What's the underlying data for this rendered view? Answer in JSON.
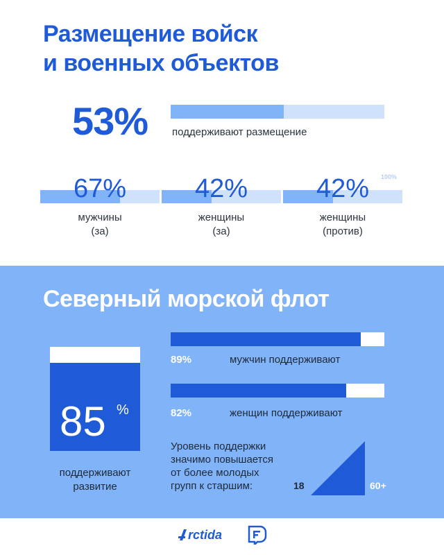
{
  "section1": {
    "title_line1": "Размещение войск",
    "title_line2": "и военных объектов",
    "main": {
      "value_text": "53%",
      "value": 53,
      "caption": "поддерживают размещение"
    },
    "scale_max_label": "100%",
    "groups": [
      {
        "value_text": "67%",
        "value": 67,
        "label_line1": "мужчины",
        "label_line2": "(за)"
      },
      {
        "value_text": "42%",
        "value": 42,
        "label_line1": "женщины",
        "label_line2": "(за)"
      },
      {
        "value_text": "42%",
        "value": 42,
        "label_line1": "женщины",
        "label_line2": "(против)"
      }
    ]
  },
  "section2": {
    "title": "Северный морской флот",
    "big": {
      "number": "85",
      "percent_sign": "%",
      "value": 85,
      "caption_line1": "поддерживают",
      "caption_line2": "развитие"
    },
    "bars": [
      {
        "value_text": "89%",
        "value": 89,
        "label": "мужчин поддерживают"
      },
      {
        "value_text": "82%",
        "value": 82,
        "label": "женщин поддерживают"
      }
    ],
    "note_lines": [
      "Уровень поддержки",
      "значимо повышается",
      "от более молодых",
      "групп к старшим:"
    ],
    "age_min": "18",
    "age_max": "60+"
  },
  "footer": {
    "logo_text": "Arctida",
    "logo_letter": "rctida"
  },
  "chart_data": [
    {
      "type": "bar",
      "orientation": "horizontal",
      "categories": [
        "поддерживают размещение"
      ],
      "values": [
        53
      ],
      "xlim": [
        0,
        100
      ]
    },
    {
      "type": "bar",
      "orientation": "horizontal",
      "categories": [
        "мужчины (за)",
        "женщины (за)",
        "женщины (против)"
      ],
      "values": [
        67,
        42,
        42
      ],
      "xlim": [
        0,
        100
      ]
    },
    {
      "type": "bar",
      "orientation": "horizontal",
      "categories": [
        "мужчин поддерживают",
        "женщин поддерживают"
      ],
      "values": [
        89,
        82
      ],
      "xlim": [
        0,
        100
      ]
    },
    {
      "type": "bar",
      "orientation": "vertical",
      "categories": [
        "поддерживают развитие"
      ],
      "values": [
        85
      ],
      "ylim": [
        0,
        100
      ]
    }
  ],
  "colors": {
    "primary": "#1f5bd6",
    "light_blue": "#80b3f7",
    "pale_blue": "#cfe1fb"
  }
}
